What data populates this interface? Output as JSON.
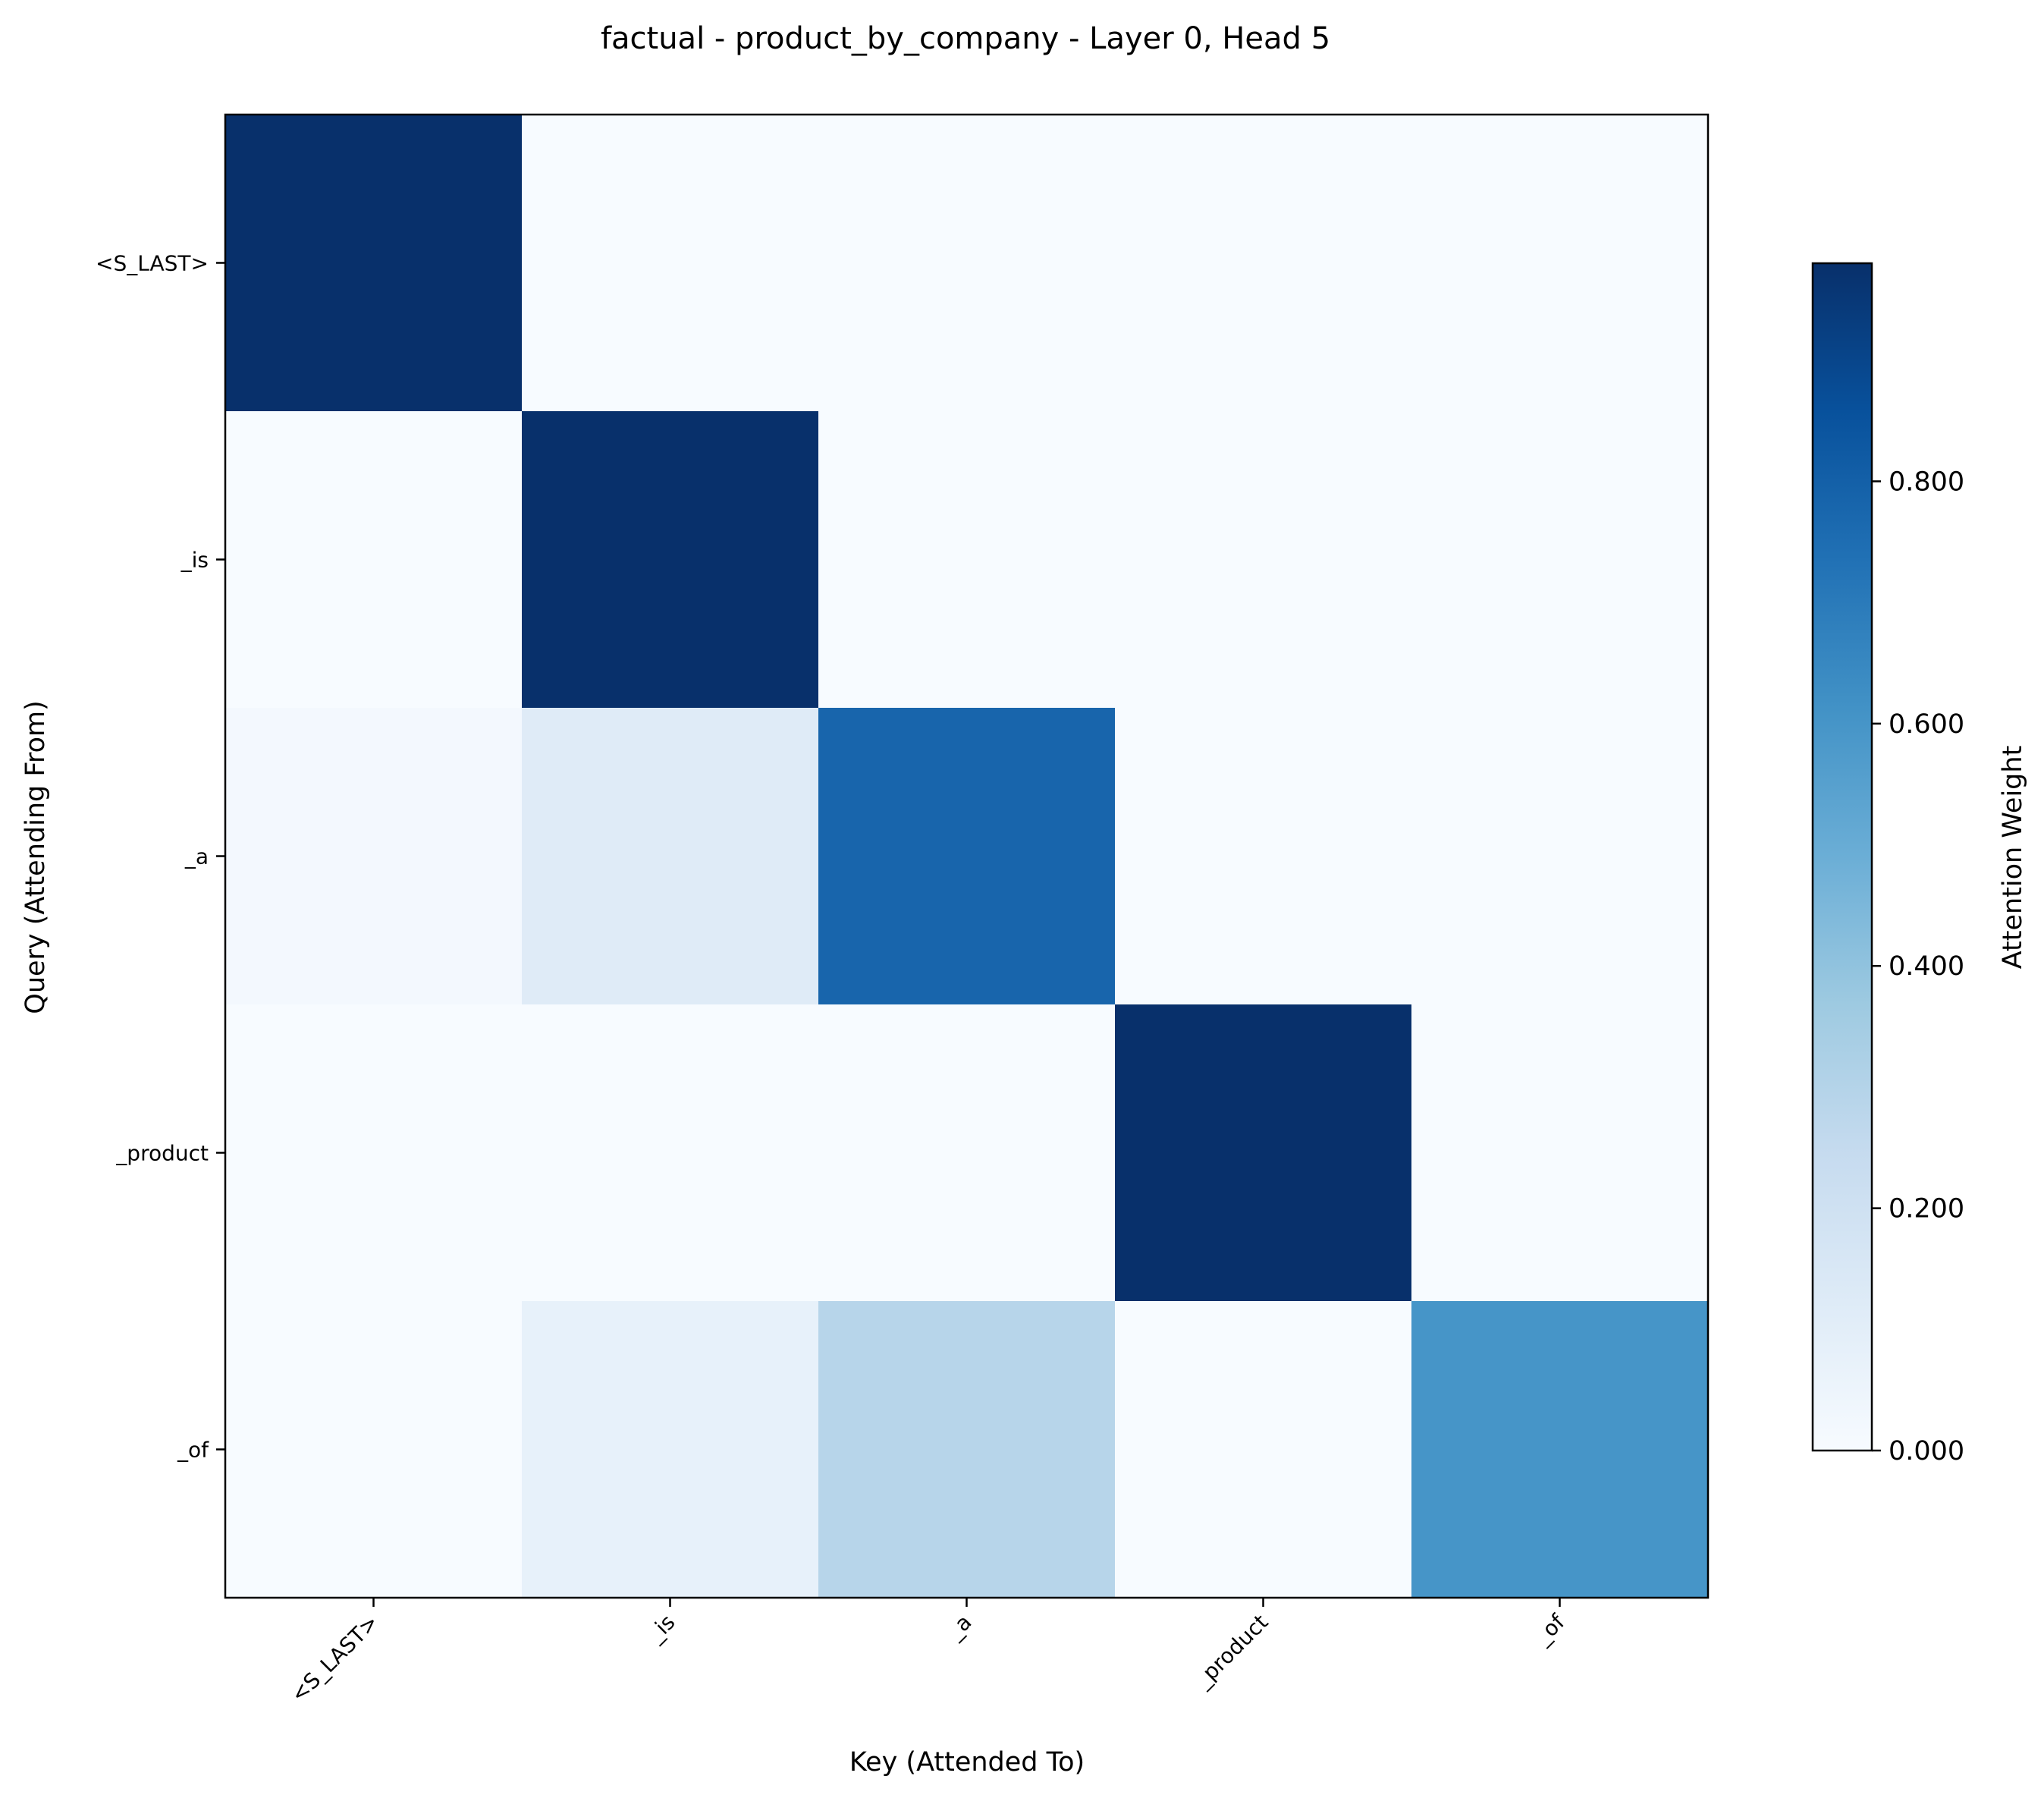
{
  "chart_data": {
    "type": "heatmap",
    "title": "factual - product_by_company - Layer 0, Head 5",
    "xlabel": "Key (Attended To)",
    "ylabel": "Query (Attending From)",
    "x_categories": [
      "<S_LAST>",
      "_is",
      "_a",
      "_product",
      "_of"
    ],
    "y_categories": [
      "<S_LAST>",
      "_is",
      "_a",
      "_product",
      "_of"
    ],
    "values": [
      [
        0.98,
        0.0,
        0.0,
        0.0,
        0.0
      ],
      [
        0.0,
        0.98,
        0.0,
        0.0,
        0.0
      ],
      [
        0.02,
        0.12,
        0.78,
        0.0,
        0.0
      ],
      [
        0.0,
        0.0,
        0.0,
        0.98,
        0.0
      ],
      [
        0.0,
        0.08,
        0.29,
        0.0,
        0.6
      ]
    ],
    "colormap": "Blues",
    "colorbar": {
      "label": "Attention Weight",
      "range": [
        0.0,
        0.98
      ],
      "ticks": [
        "0.000",
        "0.200",
        "0.400",
        "0.600",
        "0.800"
      ]
    },
    "grid": false
  }
}
